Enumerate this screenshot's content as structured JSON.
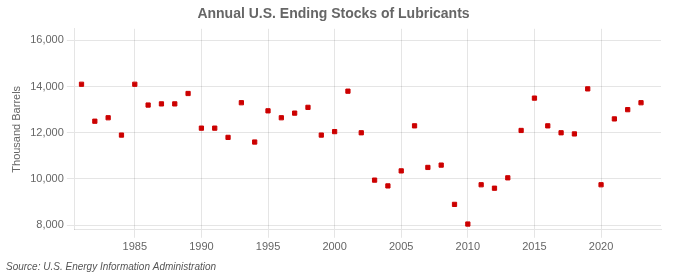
{
  "chart_data": {
    "type": "scatter",
    "title": "Annual U.S. Ending Stocks of Lubricants",
    "ylabel": "Thousand Barrels",
    "annotations": [
      "Source: U.S. Energy Information Administration"
    ],
    "x": [
      1981,
      1982,
      1983,
      1984,
      1985,
      1986,
      1987,
      1988,
      1989,
      1990,
      1991,
      1992,
      1993,
      1994,
      1995,
      1996,
      1997,
      1998,
      1999,
      2000,
      2001,
      2002,
      2003,
      2004,
      2005,
      2006,
      2007,
      2008,
      2009,
      2010,
      2011,
      2012,
      2013,
      2014,
      2015,
      2016,
      2017,
      2018,
      2019,
      2020,
      2021,
      2022,
      2023
    ],
    "values": [
      14100,
      12500,
      12650,
      11900,
      14100,
      13200,
      13250,
      13250,
      13700,
      12200,
      12200,
      11800,
      13300,
      11600,
      12950,
      12650,
      12850,
      13100,
      11900,
      12050,
      13800,
      12000,
      9950,
      9700,
      10350,
      12300,
      10500,
      10600,
      8900,
      8050,
      9750,
      9600,
      10050,
      12100,
      13500,
      12300,
      12000,
      11950,
      13900,
      9750,
      12600,
      13000,
      13300
    ],
    "color": "#cc0000",
    "marker": "square",
    "xlim": [
      1980.5,
      2024.5
    ],
    "ylim": [
      7800,
      16500
    ],
    "xticks": [
      1985,
      1990,
      1995,
      2000,
      2005,
      2010,
      2015,
      2020
    ],
    "yticks": [
      {
        "value": 8000,
        "label": "8,000"
      },
      {
        "value": 10000,
        "label": "10,000"
      },
      {
        "value": 12000,
        "label": "12,000"
      },
      {
        "value": 14000,
        "label": "14,000"
      },
      {
        "value": 16000,
        "label": "16,000"
      }
    ],
    "grid": true
  }
}
